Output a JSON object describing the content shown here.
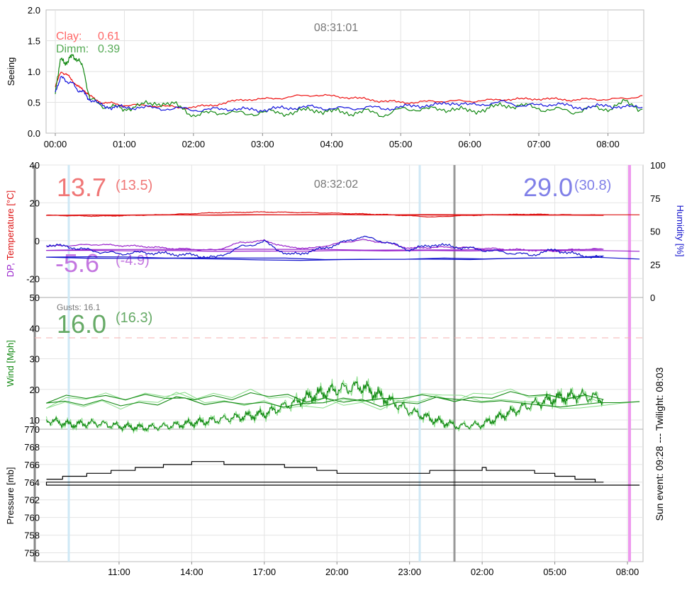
{
  "seeing_panel": {
    "timestamp": "08:31:01",
    "ylabel": "Seeing",
    "yticks": [
      "0.0",
      "0.5",
      "1.0",
      "1.5",
      "2.0"
    ],
    "xticks": [
      "00:00",
      "01:00",
      "02:00",
      "03:00",
      "04:00",
      "05:00",
      "06:00",
      "07:00",
      "08:00"
    ],
    "legend": [
      {
        "label": "Clay:",
        "value": "0.61",
        "color": "#ff6666"
      },
      {
        "label": "Dimm:",
        "value": "0.39",
        "color": "#55aa55"
      }
    ]
  },
  "temp_panel": {
    "timestamp": "08:32:02",
    "ylabel_dp": "DP,",
    "ylabel_temp": "Temperature [°C]",
    "ylabel_right": "Humidity [%]",
    "yticks_left": [
      "-20",
      "0",
      "20",
      "40"
    ],
    "yticks_right": [
      "25",
      "50",
      "75",
      "100",
      "0"
    ],
    "temp_big": "13.7",
    "temp_avg": "(13.5)",
    "dp_big": "-5.6",
    "dp_avg": "(-4.9)",
    "hum_big": "29.0",
    "hum_avg": "(30.8)"
  },
  "wind_panel": {
    "ylabel": "Wind [Mph]",
    "yticks": [
      "10",
      "20",
      "30",
      "40",
      "50"
    ],
    "gusts": "Gusts: 16.1",
    "wind_big": "16.0",
    "wind_avg": "(16.3)"
  },
  "pressure_panel": {
    "ylabel": "Pressure [mb]",
    "yticks": [
      "756",
      "758",
      "760",
      "762",
      "764",
      "766",
      "768",
      "770"
    ],
    "xticks": [
      "11:00",
      "14:00",
      "17:00",
      "20:00",
      "23:00",
      "02:00",
      "05:00",
      "08:00"
    ]
  },
  "sun_event": "Sun event: 09:28 --- Twilight: 08:03",
  "colors": {
    "clay": "#ee1111",
    "dimm": "#118811",
    "seeing3": "#1111dd",
    "temperature": "#dd1111",
    "dewpoint": "#9922cc",
    "humidity": "#1111cc",
    "wind": "#118811",
    "pressure": "#000000"
  },
  "chart_data": [
    {
      "type": "line",
      "title": "08:31:01",
      "xlabel": "",
      "ylabel": "Seeing",
      "ylim": [
        0,
        2
      ],
      "x": [
        "00:00",
        "00:05",
        "00:10",
        "00:15",
        "00:20",
        "00:25",
        "00:30",
        "00:40",
        "00:50",
        "01:00",
        "01:15",
        "01:30",
        "01:45",
        "02:00",
        "02:15",
        "02:30",
        "02:45",
        "03:00",
        "03:15",
        "03:30",
        "03:45",
        "04:00",
        "04:15",
        "04:30",
        "04:45",
        "05:00",
        "05:15",
        "05:30",
        "05:45",
        "06:00",
        "06:15",
        "06:30",
        "06:45",
        "07:00",
        "07:15",
        "07:30",
        "07:45",
        "08:00",
        "08:15",
        "08:30"
      ],
      "series": [
        {
          "name": "Clay",
          "values": [
            0.75,
            1.0,
            0.95,
            0.85,
            0.75,
            0.7,
            0.6,
            0.5,
            0.48,
            0.45,
            0.45,
            0.44,
            0.42,
            0.42,
            0.45,
            0.5,
            0.55,
            0.55,
            0.57,
            0.6,
            0.62,
            0.6,
            0.58,
            0.55,
            0.52,
            0.5,
            0.5,
            0.52,
            0.52,
            0.52,
            0.53,
            0.55,
            0.55,
            0.56,
            0.55,
            0.54,
            0.55,
            0.55,
            0.56,
            0.61
          ]
        },
        {
          "name": "Dimm",
          "values": [
            0.7,
            1.2,
            1.15,
            1.25,
            1.2,
            1.0,
            0.55,
            0.45,
            0.42,
            0.4,
            0.45,
            0.5,
            0.45,
            0.3,
            0.32,
            0.35,
            0.3,
            0.35,
            0.32,
            0.35,
            0.38,
            0.35,
            0.33,
            0.35,
            0.3,
            0.38,
            0.4,
            0.38,
            0.4,
            0.35,
            0.4,
            0.45,
            0.45,
            0.4,
            0.38,
            0.35,
            0.4,
            0.4,
            0.5,
            0.39
          ]
        },
        {
          "values": [
            0.7,
            0.9,
            0.85,
            0.8,
            0.7,
            0.65,
            0.55,
            0.45,
            0.42,
            0.42,
            0.42,
            0.4,
            0.4,
            0.38,
            0.38,
            0.4,
            0.38,
            0.38,
            0.4,
            0.42,
            0.42,
            0.4,
            0.4,
            0.42,
            0.4,
            0.42,
            0.45,
            0.45,
            0.5,
            0.45,
            0.48,
            0.5,
            0.45,
            0.45,
            0.48,
            0.42,
            0.42,
            0.45,
            0.42,
            0.42
          ]
        }
      ]
    },
    {
      "type": "line",
      "title": "08:32:02",
      "xlabel": "",
      "ylabel": "DP, Temperature [°C]",
      "ylabel_right": "Humidity [%]",
      "ylim": [
        -30,
        40
      ],
      "ylim_right": [
        0,
        100
      ],
      "x": [
        "08:00",
        "09:00",
        "10:00",
        "11:00",
        "12:00",
        "13:00",
        "14:00",
        "15:00",
        "16:00",
        "17:00",
        "18:00",
        "19:00",
        "20:00",
        "21:00",
        "22:00",
        "23:00",
        "00:00",
        "01:00",
        "02:00",
        "03:00",
        "04:00",
        "05:00",
        "06:00",
        "07:00",
        "08:00",
        "08:30"
      ],
      "series": [
        {
          "name": "Temperature",
          "values": [
            13.5,
            13.2,
            13.0,
            13.2,
            13.5,
            13.8,
            14.3,
            14.8,
            15.0,
            15.2,
            15.0,
            14.8,
            14.5,
            14.2,
            13.8,
            13.2,
            12.5,
            13.2,
            13.5,
            13.8,
            14.0,
            13.8,
            13.6,
            13.6,
            13.6,
            13.7
          ]
        },
        {
          "name": "Dew point",
          "values": [
            -3.0,
            -2.5,
            -2.0,
            -2.5,
            -3.0,
            -4.0,
            -4.5,
            -5.0,
            -1.0,
            0.0,
            -3.5,
            -4.0,
            -1.5,
            0.5,
            -1.0,
            -4.0,
            -3.5,
            -3.5,
            -4.0,
            -4.5,
            -5.0,
            -5.5,
            -4.5,
            -4.5,
            -5.0,
            -5.6
          ]
        },
        {
          "name": "Humidity",
          "axis": "right",
          "values": [
            40.0,
            38.0,
            35.0,
            33.0,
            34.0,
            33.0,
            32.0,
            30.0,
            38.0,
            42.0,
            32.0,
            35.0,
            40.0,
            46.0,
            42.0,
            36.0,
            40.0,
            38.0,
            36.0,
            34.0,
            32.0,
            36.0,
            32.0,
            30.0,
            29.5,
            29.0
          ]
        }
      ]
    },
    {
      "type": "line",
      "title": "",
      "xlabel": "",
      "ylabel": "Wind [Mph]",
      "ylim": [
        7,
        50
      ],
      "x": [
        "08:00",
        "09:00",
        "10:00",
        "11:00",
        "12:00",
        "13:00",
        "14:00",
        "15:00",
        "16:00",
        "17:00",
        "18:00",
        "19:00",
        "20:00",
        "21:00",
        "22:00",
        "23:00",
        "00:00",
        "01:00",
        "02:00",
        "03:00",
        "04:00",
        "05:00",
        "06:00",
        "07:00",
        "08:00",
        "08:30"
      ],
      "series": [
        {
          "name": "Wind",
          "values": [
            10.0,
            8.5,
            9.0,
            8.0,
            7.5,
            8.0,
            9.0,
            10.0,
            11.0,
            12.0,
            15.0,
            18.0,
            20.0,
            21.0,
            17.0,
            13.0,
            10.0,
            8.0,
            8.5,
            12.0,
            15.0,
            17.0,
            18.0,
            17.0,
            16.5,
            16.0
          ]
        }
      ]
    },
    {
      "type": "line",
      "title": "",
      "xlabel": "",
      "ylabel": "Pressure [mb]",
      "ylim": [
        755,
        770
      ],
      "x": [
        "08:00",
        "09:00",
        "10:00",
        "11:00",
        "12:00",
        "13:00",
        "14:00",
        "15:00",
        "16:00",
        "17:00",
        "18:00",
        "19:00",
        "20:00",
        "21:00",
        "22:00",
        "23:00",
        "00:00",
        "01:00",
        "02:00",
        "03:00",
        "04:00",
        "05:00",
        "06:00",
        "07:00",
        "08:00",
        "08:30"
      ],
      "series": [
        {
          "name": "Pressure",
          "values": [
            764.3,
            764.6,
            765.0,
            765.3,
            765.6,
            765.9,
            766.2,
            766.2,
            766.0,
            765.9,
            765.8,
            765.5,
            765.1,
            764.9,
            764.9,
            765.0,
            765.2,
            765.4,
            765.5,
            765.4,
            765.2,
            764.8,
            764.4,
            764.0,
            763.8,
            763.7
          ]
        }
      ]
    }
  ]
}
